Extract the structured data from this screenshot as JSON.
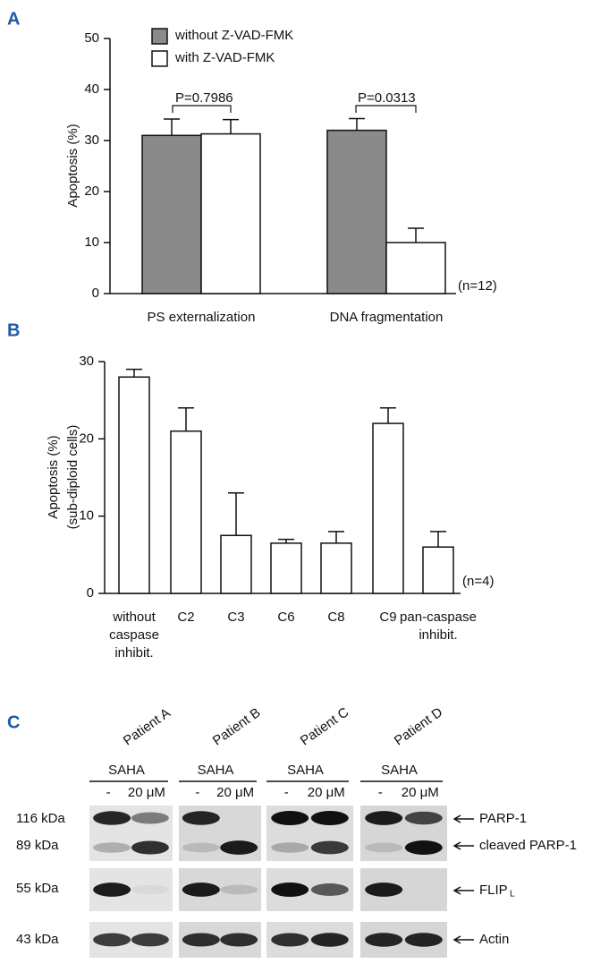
{
  "panel_labels": [
    "A",
    "B",
    "C"
  ],
  "chart_data": [
    {
      "type": "bar",
      "ylabel": "Apoptosis (%)",
      "categories": [
        "PS externalization",
        "DNA fragmentation"
      ],
      "series": [
        {
          "name": "without Z-VAD-FMK",
          "color": "#8a8a8a",
          "values": [
            31,
            32
          ],
          "errors": [
            3.2,
            2.3
          ]
        },
        {
          "name": "with Z-VAD-FMK",
          "color": "#ffffff",
          "values": [
            31.3,
            10
          ],
          "errors": [
            2.8,
            2.8
          ]
        }
      ],
      "ylim": [
        0,
        50
      ],
      "yticks": [
        0,
        10,
        20,
        30,
        40,
        50
      ],
      "annotations": [
        "P=0.7986",
        "P=0.0313",
        "(n=12)"
      ]
    },
    {
      "type": "bar",
      "ylabel": [
        "Apoptosis (%)",
        "(sub-diploid cells)"
      ],
      "categories": [
        "without\ncaspase\ninhibit.",
        "C2",
        "C3",
        "C6",
        "C8",
        "C9",
        "pan-caspase\ninhibit."
      ],
      "values": [
        28,
        21,
        7.5,
        6.5,
        6.5,
        22,
        6
      ],
      "errors": [
        1,
        3,
        5.5,
        0.5,
        1.5,
        2,
        2
      ],
      "color": "#ffffff",
      "ylim": [
        0,
        30
      ],
      "yticks": [
        0,
        10,
        20,
        30
      ],
      "annotations": [
        "(n=4)"
      ]
    }
  ],
  "blot": {
    "patients": [
      "Patient A",
      "Patient B",
      "Patient C",
      "Patient D"
    ],
    "treatment": "SAHA",
    "lanes": [
      "-",
      "20 μM"
    ],
    "sizes": [
      "116 kDa",
      "89 kDa",
      "55 kDa",
      "43 kDa"
    ],
    "proteins": {
      "parp": "PARP-1",
      "cleaved": "cleaved PARP-1",
      "flip": "FLIP",
      "flip_sub": "L",
      "actin": "Actin"
    }
  }
}
